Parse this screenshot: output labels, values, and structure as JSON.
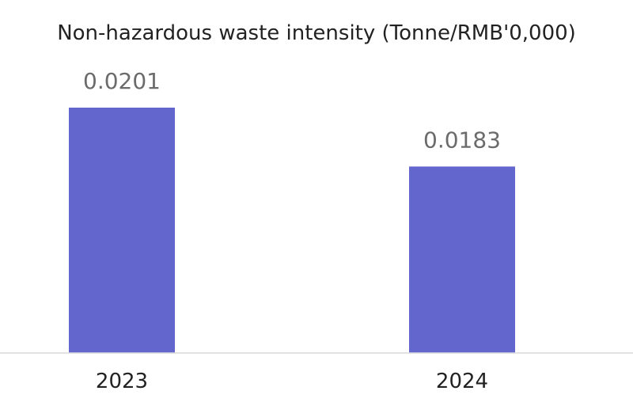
{
  "chart_data": {
    "type": "bar",
    "title": "Non-hazardous waste intensity (Tonne/RMB'0,000)",
    "categories": [
      "2023",
      "2024"
    ],
    "values": [
      0.0201,
      0.0183
    ],
    "data_labels": [
      "0.0201",
      "0.0183"
    ],
    "xlabel": "",
    "ylabel": "",
    "ylim": [
      0.0126,
      0.0205
    ],
    "grid": false,
    "legend": "none",
    "bar_color": "#6366cc",
    "baseline_color": "#d9d9d9"
  }
}
